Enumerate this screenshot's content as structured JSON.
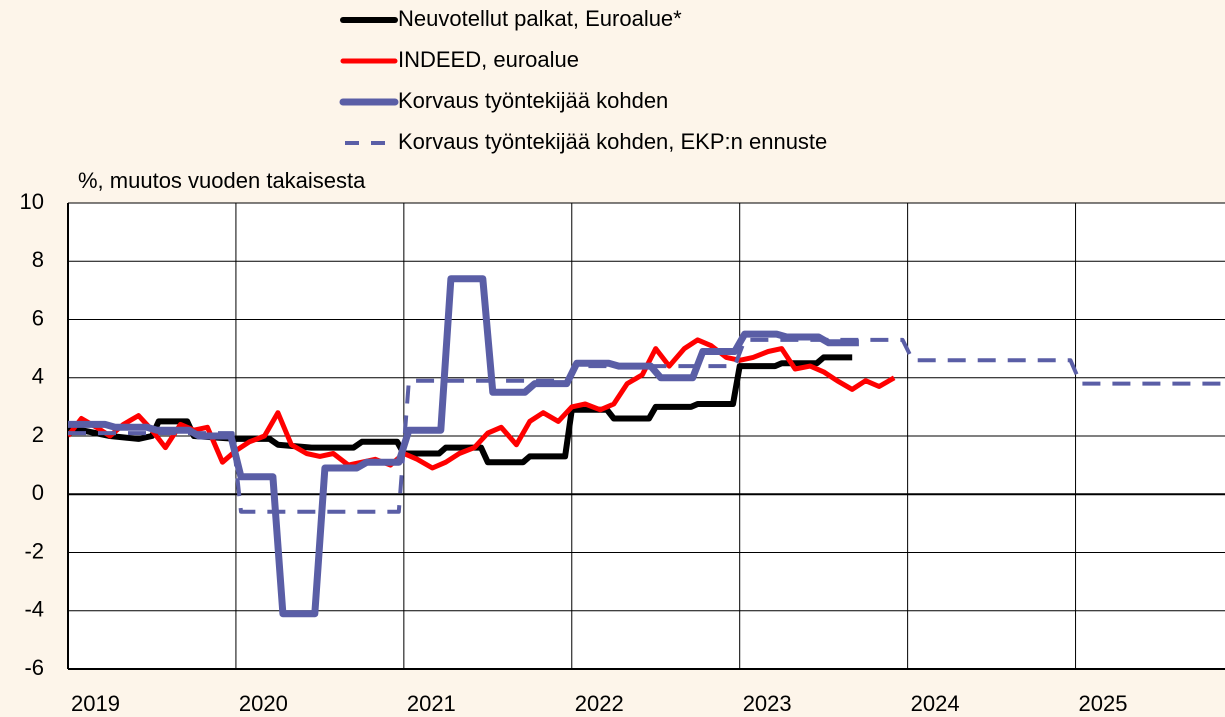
{
  "chart_data": {
    "type": "line",
    "y_label": "%, muutos vuoden takaisesta",
    "xlim": [
      2019,
      2025.89
    ],
    "xticks": [
      2019,
      2020,
      2021,
      2022,
      2023,
      2024,
      2025
    ],
    "ylim": [
      -6,
      10
    ],
    "yticks": [
      -6,
      -4,
      -2,
      0,
      2,
      4,
      6,
      8,
      10
    ],
    "grid": true,
    "legend": "top",
    "series": [
      {
        "name": "Neuvotellut palkat, Euroalue*",
        "color": "#000000",
        "dashed": false,
        "x": [
          2019.0,
          2019.08,
          2019.25,
          2019.42,
          2019.5,
          2019.54,
          2019.71,
          2019.75,
          2020.0,
          2020.2,
          2020.25,
          2020.45,
          2020.7,
          2020.75,
          2020.96,
          2021.0,
          2021.21,
          2021.25,
          2021.46,
          2021.5,
          2021.71,
          2021.75,
          2021.96,
          2022.0,
          2022.21,
          2022.25,
          2022.46,
          2022.5,
          2022.71,
          2022.75,
          2022.96,
          2023.0,
          2023.21,
          2023.25,
          2023.46,
          2023.5,
          2023.67
        ],
        "values": [
          2.2,
          2.2,
          2.0,
          1.9,
          2.0,
          2.5,
          2.5,
          2.0,
          1.9,
          1.9,
          1.7,
          1.6,
          1.6,
          1.8,
          1.8,
          1.4,
          1.4,
          1.6,
          1.6,
          1.1,
          1.1,
          1.3,
          1.3,
          2.9,
          2.9,
          2.6,
          2.6,
          3.0,
          3.0,
          3.1,
          3.1,
          4.4,
          4.4,
          4.5,
          4.5,
          4.7,
          4.7
        ]
      },
      {
        "name": "INDEED, euroalue",
        "color": "#ff0000",
        "dashed": false,
        "x": [
          2019.0,
          2019.08,
          2019.17,
          2019.25,
          2019.33,
          2019.42,
          2019.5,
          2019.58,
          2019.67,
          2019.75,
          2019.83,
          2019.92,
          2020.0,
          2020.08,
          2020.17,
          2020.25,
          2020.33,
          2020.42,
          2020.5,
          2020.58,
          2020.67,
          2020.75,
          2020.83,
          2020.92,
          2021.0,
          2021.08,
          2021.17,
          2021.25,
          2021.33,
          2021.42,
          2021.5,
          2021.58,
          2021.67,
          2021.75,
          2021.83,
          2021.92,
          2022.0,
          2022.08,
          2022.17,
          2022.25,
          2022.33,
          2022.42,
          2022.5,
          2022.58,
          2022.67,
          2022.75,
          2022.83,
          2022.92,
          2023.0,
          2023.08,
          2023.17,
          2023.25,
          2023.33,
          2023.42,
          2023.5,
          2023.58,
          2023.67,
          2023.75,
          2023.83,
          2023.92
        ],
        "values": [
          2.0,
          2.6,
          2.3,
          2.0,
          2.4,
          2.7,
          2.2,
          1.6,
          2.4,
          2.2,
          2.3,
          1.1,
          1.5,
          1.8,
          2.0,
          2.8,
          1.7,
          1.4,
          1.3,
          1.4,
          1.0,
          1.1,
          1.2,
          1.0,
          1.4,
          1.2,
          0.9,
          1.1,
          1.4,
          1.6,
          2.1,
          2.3,
          1.7,
          2.5,
          2.8,
          2.5,
          3.0,
          3.1,
          2.9,
          3.1,
          3.8,
          4.1,
          5.0,
          4.4,
          5.0,
          5.3,
          5.1,
          4.7,
          4.6,
          4.7,
          4.9,
          5.0,
          4.3,
          4.4,
          4.2,
          3.9,
          3.6,
          3.9,
          3.7,
          4.0
        ]
      },
      {
        "name": "Korvaus työntekijää kohden",
        "color": "#5a5ea6",
        "dashed": false,
        "x": [
          2019.0,
          2019.22,
          2019.28,
          2019.47,
          2019.53,
          2019.72,
          2019.78,
          2019.97,
          2020.03,
          2020.22,
          2020.28,
          2020.47,
          2020.53,
          2020.72,
          2020.78,
          2020.97,
          2021.03,
          2021.22,
          2021.28,
          2021.47,
          2021.53,
          2021.72,
          2021.78,
          2021.97,
          2022.03,
          2022.22,
          2022.28,
          2022.47,
          2022.53,
          2022.72,
          2022.78,
          2022.97,
          2023.03,
          2023.22,
          2023.28,
          2023.47,
          2023.53,
          2023.71
        ],
        "values": [
          2.4,
          2.4,
          2.3,
          2.3,
          2.2,
          2.2,
          2.0,
          2.0,
          0.6,
          0.6,
          -4.1,
          -4.1,
          0.9,
          0.9,
          1.1,
          1.1,
          2.2,
          2.2,
          7.4,
          7.4,
          3.5,
          3.5,
          3.8,
          3.8,
          4.5,
          4.5,
          4.4,
          4.4,
          4.0,
          4.0,
          4.9,
          4.9,
          5.5,
          5.5,
          5.4,
          5.4,
          5.2,
          5.2
        ]
      },
      {
        "name": "Korvaus työntekijää kohden, EKP:n ennuste",
        "color": "#5a5ea6",
        "dashed": true,
        "x": [
          2019.0,
          2019.98,
          2020.03,
          2020.97,
          2021.03,
          2021.97,
          2022.03,
          2022.97,
          2023.03,
          2023.97,
          2024.03,
          2024.97,
          2025.03,
          2025.98
        ],
        "values": [
          2.1,
          2.1,
          -0.6,
          -0.6,
          3.9,
          3.9,
          4.4,
          4.4,
          5.3,
          5.3,
          4.6,
          4.6,
          3.8,
          3.8
        ]
      }
    ]
  }
}
